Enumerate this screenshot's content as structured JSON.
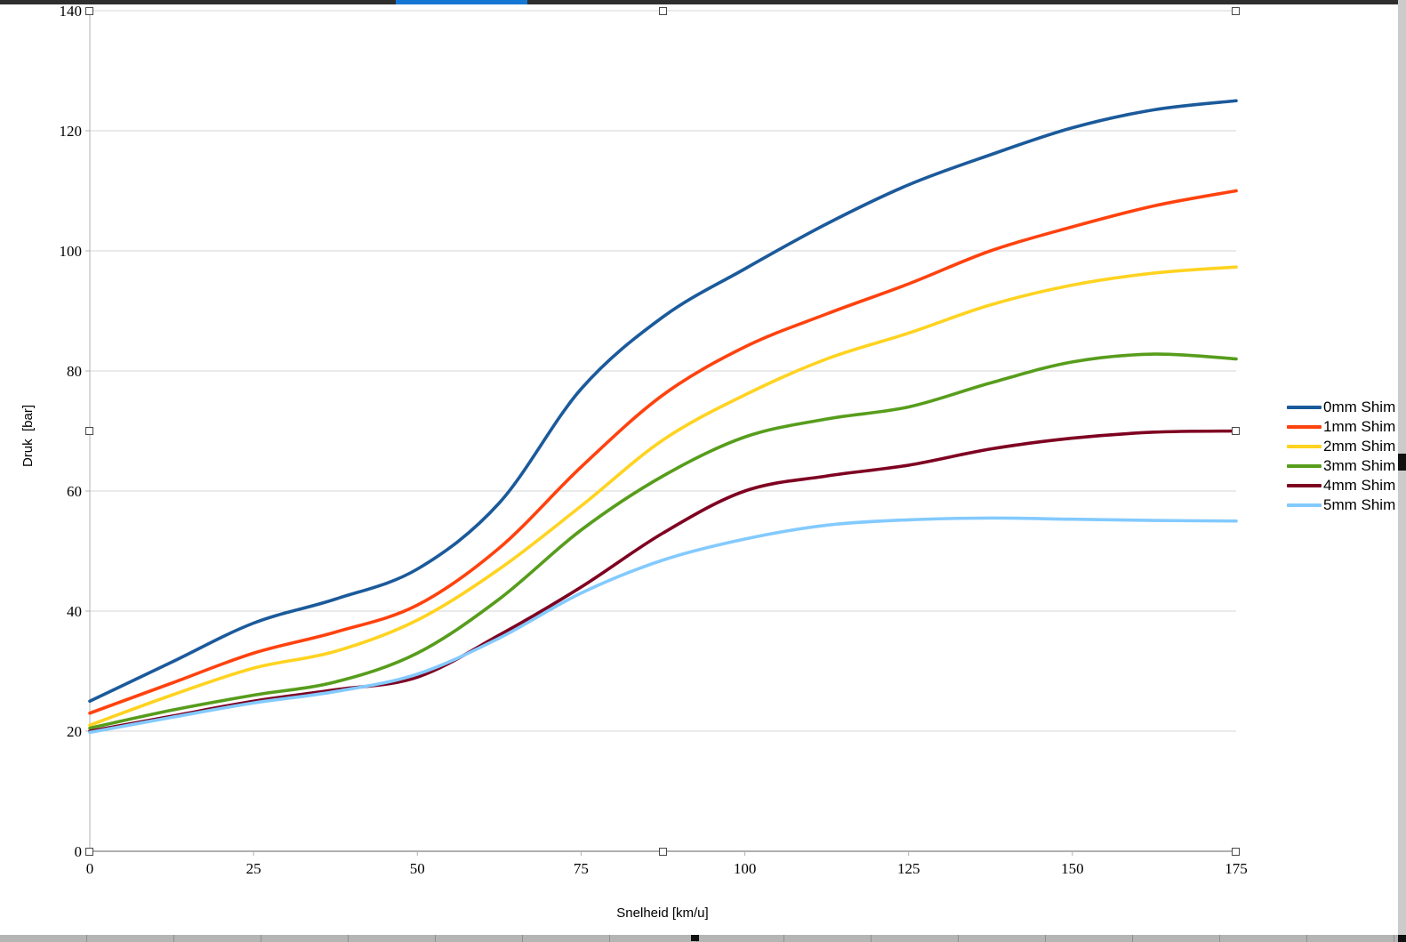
{
  "chrome": {
    "top_bar_color": "#2e2e2e",
    "top_bar_accent_color": "#1577d4",
    "scrollbar_track_color": "#cbcbcb",
    "bottom_bar_color": "#b5b5b5"
  },
  "chart_data": {
    "type": "line",
    "title": "",
    "xlabel": "Snelheid [km/u]",
    "ylabel": "Druk  [bar]",
    "xlim": [
      0,
      175
    ],
    "ylim": [
      0,
      140
    ],
    "x_ticks": [
      0,
      25,
      50,
      75,
      100,
      125,
      150,
      175
    ],
    "y_ticks": [
      0,
      20,
      40,
      60,
      80,
      100,
      120,
      140
    ],
    "grid": "horizontal",
    "legend_position": "right",
    "x": [
      0,
      12.5,
      25,
      37.5,
      50,
      62.5,
      75,
      87.5,
      100,
      112.5,
      125,
      137.5,
      150,
      162.5,
      175
    ],
    "series": [
      {
        "name": "0mm Shim",
        "color": "#1B5A9B",
        "values": [
          25,
          31.5,
          38,
          42,
          47,
          58,
          77,
          89,
          97,
          104.5,
          111,
          116,
          120.5,
          123.5,
          125
        ]
      },
      {
        "name": "1mm Shim",
        "color": "#FF420E",
        "values": [
          23,
          28,
          33,
          36.5,
          41,
          50.5,
          64,
          76,
          84,
          89.5,
          94.5,
          100,
          104,
          107.5,
          110
        ]
      },
      {
        "name": "2mm Shim",
        "color": "#FFD320",
        "values": [
          21,
          26,
          30.5,
          33.3,
          38.5,
          47,
          57.5,
          68.5,
          76,
          82,
          86.3,
          91,
          94.3,
          96.3,
          97.3
        ]
      },
      {
        "name": "3mm Shim",
        "color": "#579D1C",
        "values": [
          20.5,
          23.5,
          26,
          28.2,
          33,
          42,
          53.5,
          62.5,
          69,
          72,
          74,
          78,
          81.5,
          82.8,
          82
        ]
      },
      {
        "name": "4mm Shim",
        "color": "#7E0021",
        "values": [
          20,
          22.5,
          25,
          26.9,
          29,
          36,
          44,
          53,
          60,
          62.5,
          64.3,
          67,
          68.8,
          69.8,
          70
        ]
      },
      {
        "name": "5mm Shim",
        "color": "#83CAFF",
        "values": [
          19.8,
          22.3,
          24.7,
          26.6,
          29.5,
          35.5,
          43,
          48.5,
          52,
          54.3,
          55.2,
          55.5,
          55.3,
          55.1,
          55
        ]
      }
    ]
  }
}
